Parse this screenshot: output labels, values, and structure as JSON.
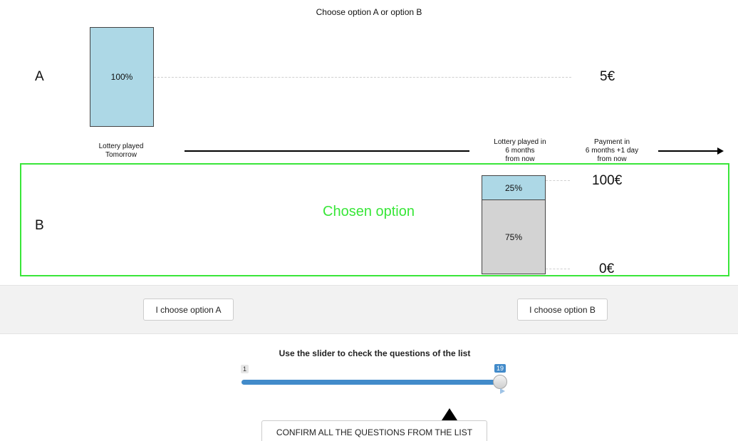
{
  "header": {
    "title": "Choose option A or option B"
  },
  "option_a": {
    "label": "A",
    "probability": "100%",
    "payout": "5€"
  },
  "option_b": {
    "label": "B",
    "high": {
      "probability": "25%",
      "payout": "100€"
    },
    "low": {
      "probability": "75%",
      "payout": "0€"
    },
    "chosen_text": "Chosen option"
  },
  "timeline": {
    "lottery_a": "Lottery played\nTomorrow",
    "lottery_b": "Lottery played in\n6 months\nfrom now",
    "payment": "Payment in\n6 months +1 day\nfrom now"
  },
  "buttons": {
    "choose_a": "I choose option A",
    "choose_b": "I choose option B"
  },
  "slider": {
    "title": "Use the slider to check the questions of the list",
    "min_label": "1",
    "value_label": "19",
    "fraction": 1.0
  },
  "confirm": {
    "label": "CONFIRM ALL THE QUESTIONS FROM THE LIST"
  },
  "colors": {
    "lottery_win": "#add8e6",
    "lottery_lose": "#d3d3d3",
    "chosen": "#39e639",
    "slider": "#428bca"
  }
}
